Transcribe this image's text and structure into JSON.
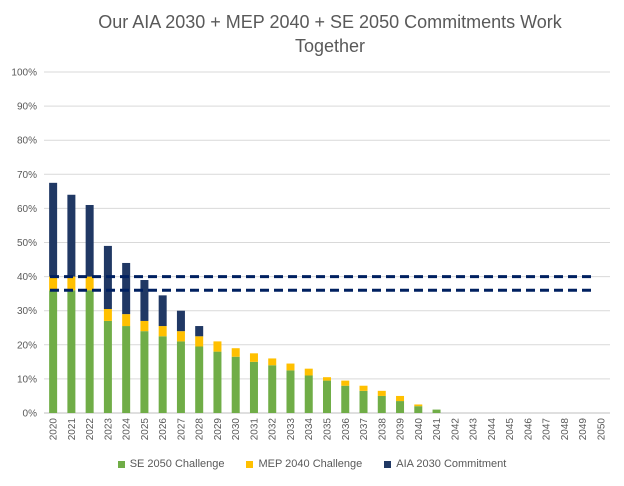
{
  "chart_data": {
    "type": "bar",
    "stacked": true,
    "title_line1": "Our AIA 2030 + MEP 2040 + SE 2050 Commitments Work",
    "title_line2": "Together",
    "categories": [
      "2020",
      "2021",
      "2022",
      "2023",
      "2024",
      "2025",
      "2026",
      "2027",
      "2028",
      "2029",
      "2030",
      "2031",
      "2032",
      "2033",
      "2034",
      "2035",
      "2036",
      "2037",
      "2038",
      "2039",
      "2040",
      "2041",
      "2042",
      "2043",
      "2044",
      "2045",
      "2046",
      "2047",
      "2048",
      "2049",
      "2050"
    ],
    "y_ticks": [
      "0%",
      "10%",
      "20%",
      "30%",
      "40%",
      "50%",
      "60%",
      "70%",
      "80%",
      "90%",
      "100%"
    ],
    "ylim": [
      0,
      100
    ],
    "grid": true,
    "legend_position": "bottom",
    "series": [
      {
        "name": "SE 2050 Challenge",
        "color": "#70AD47",
        "values": [
          36,
          36,
          36,
          27,
          25.5,
          24,
          22.5,
          21,
          19.5,
          18,
          16.5,
          15,
          14,
          12.5,
          11,
          9.5,
          8,
          6.5,
          5,
          3.5,
          2,
          1,
          0,
          0,
          0,
          0,
          0,
          0,
          0,
          0,
          0
        ]
      },
      {
        "name": "MEP 2040 Challenge",
        "color": "#FFC000",
        "values": [
          4,
          4,
          4,
          3.5,
          3.5,
          3,
          3,
          3,
          3,
          3,
          2.5,
          2.5,
          2,
          2,
          2,
          1,
          1.5,
          1.5,
          1.5,
          1.5,
          0.5,
          0,
          0,
          0,
          0,
          0,
          0,
          0,
          0,
          0,
          0
        ]
      },
      {
        "name": "AIA 2030 Commitment",
        "color": "#203864",
        "values": [
          27.5,
          24,
          21,
          18.5,
          15,
          12,
          9,
          6,
          3,
          0,
          0,
          0,
          0,
          0,
          0,
          0,
          0,
          0,
          0,
          0,
          0,
          0,
          0,
          0,
          0,
          0,
          0,
          0,
          0,
          0,
          0
        ]
      }
    ],
    "reference_lines": [
      {
        "value": 40,
        "color": "#002060"
      },
      {
        "value": 36,
        "color": "#002060"
      }
    ]
  }
}
